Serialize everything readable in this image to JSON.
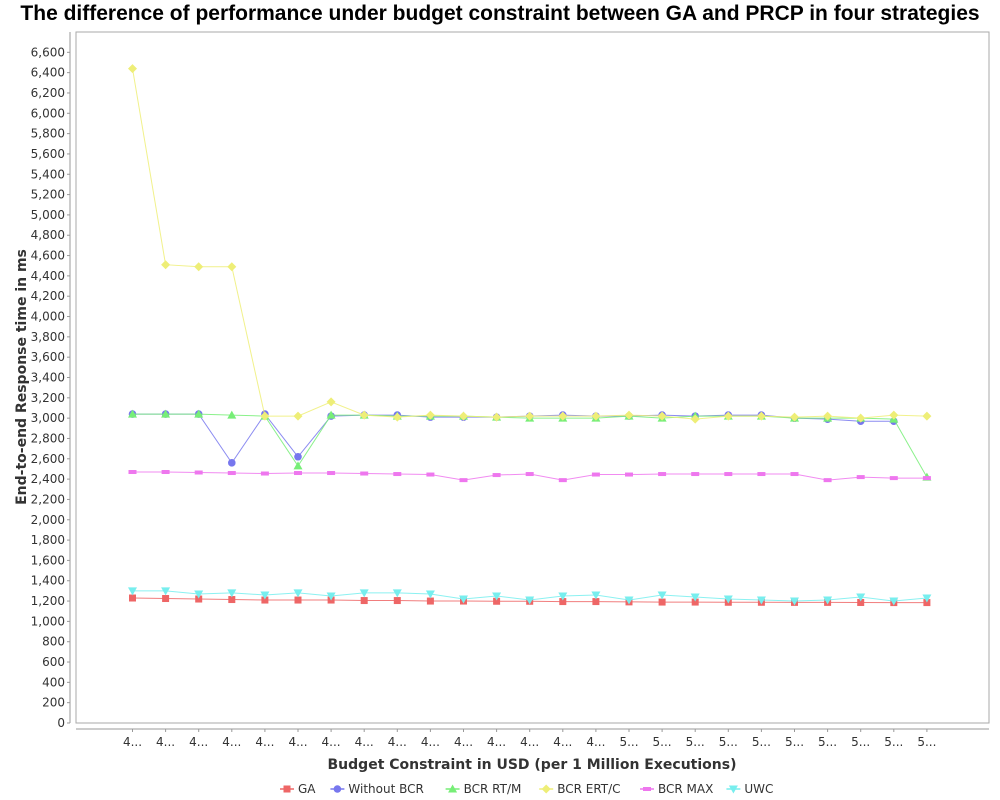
{
  "chart_data": {
    "type": "line",
    "title": "The difference of performance under budget constraint between GA and PRCP in  four strategies",
    "xlabel": "Budget Constraint in USD (per 1 Million Executions)",
    "ylabel": "End-to-end Response time in ms",
    "ylim": [
      0,
      6800
    ],
    "yticks": [
      0,
      200,
      400,
      600,
      800,
      1000,
      1200,
      1400,
      1600,
      1800,
      2000,
      2200,
      2400,
      2600,
      2800,
      3000,
      3200,
      3400,
      3600,
      3800,
      4000,
      4200,
      4400,
      4600,
      4800,
      5000,
      5200,
      5400,
      5600,
      5800,
      6000,
      6200,
      6400,
      6600
    ],
    "ytick_labels": [
      "0",
      "200",
      "400",
      "600",
      "800",
      "1,000",
      "1,200",
      "1,400",
      "1,600",
      "1,800",
      "2,000",
      "2,200",
      "2,400",
      "2,600",
      "2,800",
      "3,000",
      "3,200",
      "3,400",
      "3,600",
      "3,800",
      "4,000",
      "4,200",
      "4,400",
      "4,600",
      "4,800",
      "5,000",
      "5,200",
      "5,400",
      "5,600",
      "5,800",
      "6,000",
      "6,200",
      "6,400",
      "6,600"
    ],
    "categories": [
      "4...",
      "4...",
      "4...",
      "4...",
      "4...",
      "4...",
      "4...",
      "4...",
      "4...",
      "4...",
      "4...",
      "4...",
      "4...",
      "4...",
      "4...",
      "5...",
      "5...",
      "5...",
      "5...",
      "5...",
      "5...",
      "5...",
      "5...",
      "5...",
      "5..."
    ],
    "grid": false,
    "legend_position": "bottom",
    "series": [
      {
        "name": "GA",
        "color": "#ee6666",
        "marker": "square",
        "values": [
          1230,
          1225,
          1220,
          1215,
          1210,
          1210,
          1210,
          1205,
          1205,
          1200,
          1200,
          1198,
          1198,
          1195,
          1195,
          1192,
          1190,
          1190,
          1188,
          1188,
          1187,
          1187,
          1186,
          1185,
          1185
        ]
      },
      {
        "name": "Without BCR",
        "color": "#7777ee",
        "marker": "circle",
        "values": [
          3040,
          3040,
          3040,
          2560,
          3040,
          2620,
          3020,
          3030,
          3030,
          3010,
          3010,
          3010,
          3020,
          3030,
          3020,
          3020,
          3030,
          3020,
          3030,
          3030,
          3000,
          2990,
          2970,
          2970,
          null
        ]
      },
      {
        "name": "BCR RT/M",
        "color": "#77ee77",
        "marker": "triangle-up",
        "values": [
          3040,
          3040,
          3040,
          3030,
          3020,
          2530,
          3030,
          3030,
          3020,
          3020,
          3020,
          3010,
          3000,
          3000,
          3000,
          3020,
          3000,
          3020,
          3020,
          3020,
          3000,
          3000,
          3000,
          2990,
          2420
        ]
      },
      {
        "name": "BCR ERT/C",
        "color": "#eeee77",
        "marker": "diamond",
        "values": [
          6440,
          4510,
          4490,
          4490,
          3020,
          3020,
          3160,
          3030,
          3010,
          3030,
          3020,
          3010,
          3020,
          3020,
          3020,
          3030,
          3020,
          2990,
          3020,
          3020,
          3010,
          3020,
          3000,
          3030,
          3020
        ]
      },
      {
        "name": "BCR MAX",
        "color": "#ee77ee",
        "marker": "dash",
        "values": [
          2470,
          2470,
          2465,
          2460,
          2455,
          2460,
          2460,
          2455,
          2450,
          2445,
          2390,
          2440,
          2450,
          2390,
          2445,
          2445,
          2450,
          2450,
          2450,
          2450,
          2450,
          2390,
          2420,
          2410,
          2410
        ]
      },
      {
        "name": "UWC",
        "color": "#77eeee",
        "marker": "triangle-down",
        "values": [
          1300,
          1300,
          1270,
          1280,
          1260,
          1280,
          1250,
          1280,
          1280,
          1270,
          1220,
          1250,
          1210,
          1250,
          1260,
          1210,
          1260,
          1240,
          1220,
          1210,
          1200,
          1210,
          1240,
          1200,
          1230
        ]
      }
    ]
  }
}
